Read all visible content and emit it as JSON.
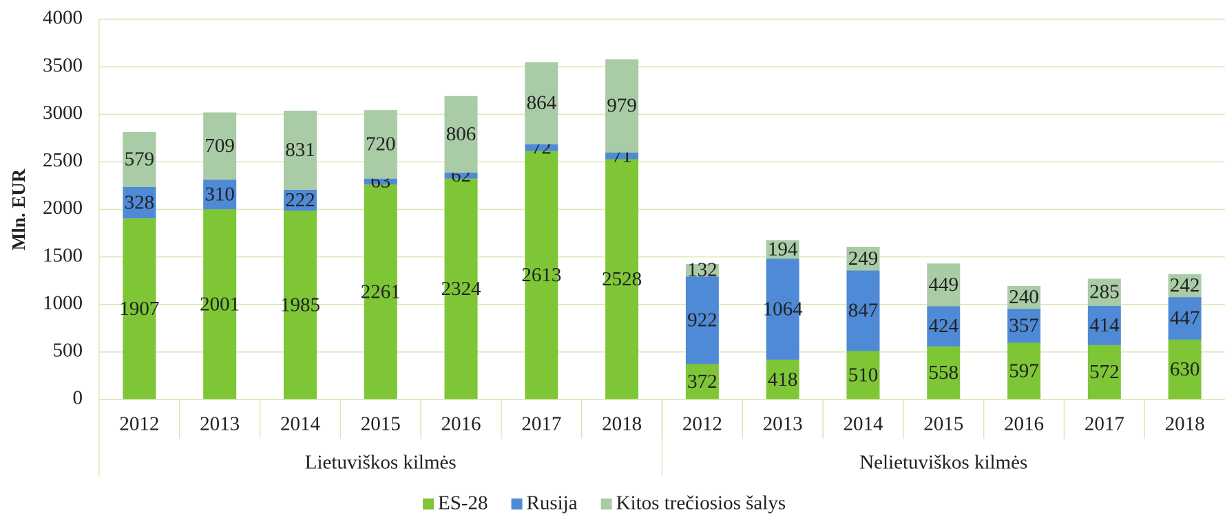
{
  "chart_data": {
    "type": "stacked_bar",
    "y_label": "Mln. EUR",
    "categories": [
      "2012",
      "2013",
      "2014",
      "2015",
      "2016",
      "2017",
      "2018",
      "2012",
      "2013",
      "2014",
      "2015",
      "2016",
      "2017",
      "2018"
    ],
    "groups": [
      "Lietuviškos kilmės",
      "Nelietuviškos kilmės"
    ],
    "series": [
      {
        "name": "ES-28",
        "color": "#7ec636",
        "values": [
          1907,
          2001,
          1985,
          2261,
          2324,
          2613,
          2528,
          372,
          418,
          510,
          558,
          597,
          572,
          630
        ]
      },
      {
        "name": "Rusija",
        "color": "#4f8ad6",
        "values": [
          328,
          310,
          222,
          63,
          62,
          72,
          71,
          922,
          1064,
          847,
          424,
          357,
          414,
          447
        ]
      },
      {
        "name": "Kitos trečiosios šalys",
        "color": "#a9cba5",
        "values": [
          579,
          709,
          831,
          720,
          806,
          864,
          979,
          132,
          194,
          249,
          449,
          240,
          285,
          242
        ]
      }
    ],
    "ylim": [
      0,
      4000
    ],
    "yticks": [
      0,
      500,
      1000,
      1500,
      2000,
      2500,
      3000,
      3500,
      4000
    ],
    "grid": true,
    "legend": "bottom"
  }
}
